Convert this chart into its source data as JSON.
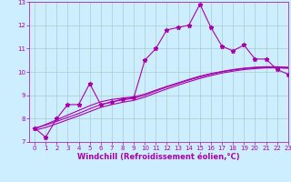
{
  "xlabel": "Windchill (Refroidissement éolien,°C)",
  "bg_color": "#cceeff",
  "line_color": "#aa00aa",
  "x_data": [
    0,
    1,
    2,
    3,
    4,
    5,
    6,
    7,
    8,
    9,
    10,
    11,
    12,
    13,
    14,
    15,
    16,
    17,
    18,
    19,
    20,
    21,
    22,
    23
  ],
  "y_main": [
    7.6,
    7.2,
    8.0,
    8.6,
    8.6,
    9.5,
    8.6,
    8.7,
    8.85,
    8.9,
    10.5,
    11.0,
    11.8,
    11.9,
    12.0,
    12.9,
    11.9,
    11.1,
    10.9,
    11.15,
    10.55,
    10.55,
    10.1,
    9.9
  ],
  "y_reg1": [
    7.55,
    7.75,
    7.95,
    8.15,
    8.35,
    8.55,
    8.72,
    8.82,
    8.88,
    8.93,
    9.05,
    9.22,
    9.38,
    9.53,
    9.68,
    9.82,
    9.93,
    10.02,
    10.1,
    10.16,
    10.2,
    10.22,
    10.22,
    10.2
  ],
  "y_reg2": [
    7.6,
    7.72,
    7.88,
    8.05,
    8.22,
    8.42,
    8.6,
    8.72,
    8.8,
    8.87,
    9.0,
    9.18,
    9.35,
    9.5,
    9.65,
    9.78,
    9.9,
    10.0,
    10.08,
    10.14,
    10.18,
    10.2,
    10.2,
    10.18
  ],
  "y_reg3": [
    7.5,
    7.62,
    7.78,
    7.95,
    8.12,
    8.3,
    8.48,
    8.6,
    8.7,
    8.78,
    8.92,
    9.1,
    9.27,
    9.43,
    9.58,
    9.72,
    9.84,
    9.95,
    10.03,
    10.1,
    10.14,
    10.17,
    10.17,
    10.15
  ],
  "ylim": [
    7,
    13
  ],
  "xlim": [
    -0.5,
    23
  ],
  "yticks": [
    7,
    8,
    9,
    10,
    11,
    12,
    13
  ],
  "xticks": [
    0,
    1,
    2,
    3,
    4,
    5,
    6,
    7,
    8,
    9,
    10,
    11,
    12,
    13,
    14,
    15,
    16,
    17,
    18,
    19,
    20,
    21,
    22,
    23
  ],
  "grid_color": "#aacccc",
  "marker": "*",
  "marker_size": 3.5,
  "line_width": 0.8,
  "tick_fontsize": 5.0,
  "label_fontsize": 6.0
}
